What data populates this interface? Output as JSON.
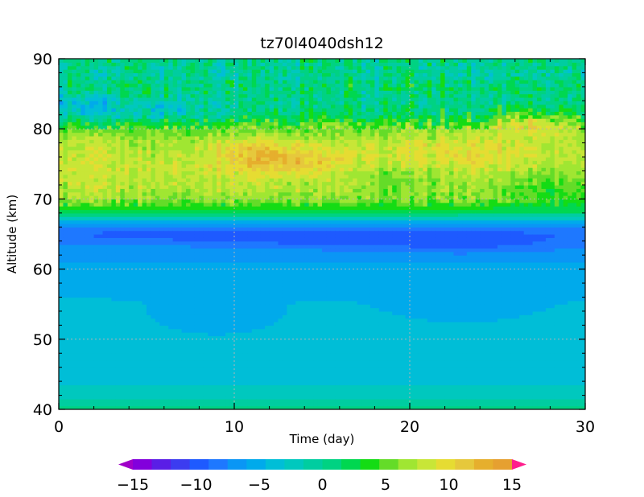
{
  "chart_data": {
    "type": "heatmap",
    "title": "tz70l4040dsh12",
    "xlabel": "Time (day)",
    "ylabel": "Altitude (km)",
    "xlim": [
      0,
      30
    ],
    "ylim": [
      40,
      90
    ],
    "xticks": [
      0,
      10,
      20,
      30
    ],
    "xtick_labels": [
      "0",
      "10",
      "20",
      "30"
    ],
    "yticks": [
      40,
      50,
      60,
      70,
      80,
      90
    ],
    "ytick_labels": [
      "40",
      "50",
      "60",
      "70",
      "80",
      "90"
    ],
    "grid": true,
    "colorbar": {
      "orientation": "horizontal",
      "min": -15,
      "max": 15,
      "step": 1.5,
      "tick_values": [
        -15,
        -10,
        -5,
        0,
        5,
        10,
        15
      ],
      "tick_labels": [
        "−15",
        "−10",
        "−5",
        "0",
        "5",
        "10",
        "15"
      ],
      "colors": [
        "#a000c8",
        "#8200dc",
        "#5a1ee6",
        "#3c3cf0",
        "#1e5aff",
        "#1e78ff",
        "#0a96f5",
        "#00aaeb",
        "#00bed7",
        "#00c8be",
        "#00cda0",
        "#00d282",
        "#00d750",
        "#14dc14",
        "#64dc28",
        "#a0e632",
        "#c8e637",
        "#e6dc32",
        "#e6c83c",
        "#e6af2d",
        "#e6a030",
        "#eb8c32",
        "#f07837",
        "#f0643c",
        "#f5463c",
        "#f53264",
        "#ff1e8c"
      ]
    },
    "altitude_profile": [
      {
        "alt": 40.0,
        "value": 0.8
      },
      {
        "alt": 41.0,
        "value": -0.5
      },
      {
        "alt": 42.0,
        "value": -2.2
      },
      {
        "alt": 44.0,
        "value": -3.2
      },
      {
        "alt": 46.0,
        "value": -3.6
      },
      {
        "alt": 50.0,
        "value": -3.8
      },
      {
        "alt": 55.0,
        "value": -4.3
      },
      {
        "alt": 58.0,
        "value": -5.0
      },
      {
        "alt": 61.0,
        "value": -6.0
      },
      {
        "alt": 63.0,
        "value": -7.0
      },
      {
        "alt": 65.0,
        "value": -8.3
      },
      {
        "alt": 66.5,
        "value": -6.5
      },
      {
        "alt": 67.3,
        "value": -2.5
      },
      {
        "alt": 68.0,
        "value": 1.5
      },
      {
        "alt": 70.0,
        "value": 6.5
      },
      {
        "alt": 72.0,
        "value": 7.8
      },
      {
        "alt": 75.0,
        "value": 8.2
      },
      {
        "alt": 78.0,
        "value": 7.2
      },
      {
        "alt": 80.5,
        "value": 4.8
      },
      {
        "alt": 82.0,
        "value": 1.5
      },
      {
        "alt": 84.0,
        "value": 0.0
      },
      {
        "alt": 86.0,
        "value": 1.0
      },
      {
        "alt": 88.0,
        "value": -0.5
      },
      {
        "alt": 90.0,
        "value": 0.3
      }
    ],
    "features": [
      {
        "t": 13,
        "alt": 75.5,
        "amp": 3.5,
        "st": 2.2,
        "sa": 1.5
      },
      {
        "t": 11,
        "alt": 77,
        "amp": 2.5,
        "st": 2.0,
        "sa": 1.5
      },
      {
        "t": 27,
        "alt": 81,
        "amp": 4.5,
        "st": 1.8,
        "sa": 1.5
      },
      {
        "t": 23,
        "alt": 77,
        "amp": 2.0,
        "st": 3.0,
        "sa": 2.0
      },
      {
        "t": 19.5,
        "alt": 73,
        "amp": -2.5,
        "st": 2.5,
        "sa": 1.8
      },
      {
        "t": 28,
        "alt": 72,
        "amp": -3.0,
        "st": 2.5,
        "sa": 2.0
      },
      {
        "t": 5,
        "alt": 82.5,
        "amp": -3.5,
        "st": 3.0,
        "sa": 1.2
      },
      {
        "t": 1,
        "alt": 83,
        "amp": -3.0,
        "st": 1.2,
        "sa": 1.5
      },
      {
        "t": 14,
        "alt": 64.5,
        "amp": -2.0,
        "st": 4.0,
        "sa": 1.0
      },
      {
        "t": 23,
        "alt": 64,
        "amp": -2.5,
        "st": 4.0,
        "sa": 1.2
      },
      {
        "t": 5,
        "alt": 65,
        "amp": -1.5,
        "st": 3.0,
        "sa": 0.8
      },
      {
        "t": 9,
        "alt": 53,
        "amp": -1.2,
        "st": 2.5,
        "sa": 2.0
      },
      {
        "t": 23,
        "alt": 55,
        "amp": -1.0,
        "st": 3.0,
        "sa": 2.0
      }
    ]
  }
}
